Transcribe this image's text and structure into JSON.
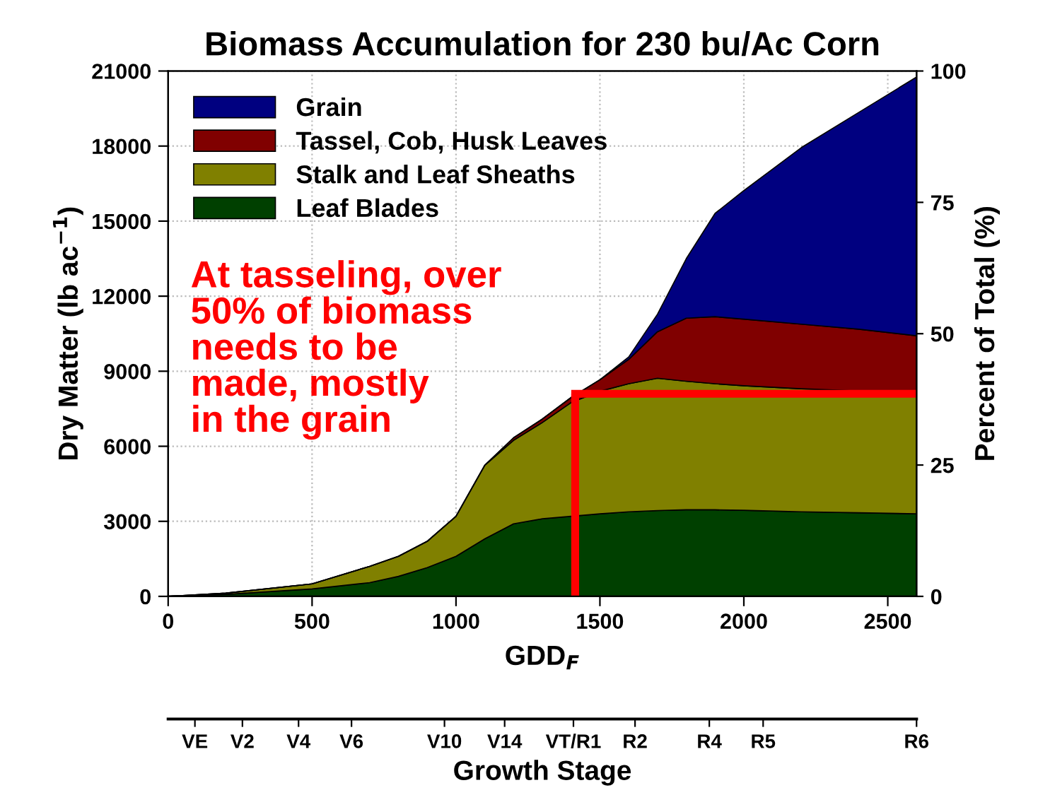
{
  "chart_data": {
    "type": "area",
    "title": "Biomass Accumulation for 230 bu/Ac Corn",
    "xlabel": "GDD$_{F}$",
    "ylabel": "Dry Matter (lb ac$^{−1}$)",
    "y2label": "Percent of Total (%)",
    "stacked": true,
    "grid": true,
    "legend": "top left",
    "x": [
      0,
      200,
      500,
      700,
      800,
      900,
      1000,
      1100,
      1200,
      1300,
      1400,
      1500,
      1600,
      1700,
      1800,
      1900,
      2000,
      2200,
      2400,
      2600
    ],
    "series": [
      {
        "name": "Leaf Blades",
        "color": "#004000",
        "values": [
          0,
          80,
          300,
          550,
          800,
          1150,
          1600,
          2300,
          2900,
          3100,
          3200,
          3300,
          3380,
          3430,
          3460,
          3460,
          3440,
          3380,
          3340,
          3300
        ]
      },
      {
        "name": "Stalk and Leaf Sheaths",
        "color": "#808000",
        "values": [
          0,
          50,
          200,
          650,
          800,
          1050,
          1600,
          2940,
          3340,
          3850,
          4550,
          4900,
          5120,
          5290,
          5140,
          5040,
          4980,
          4920,
          4870,
          4850
        ]
      },
      {
        "name": "Tassel, Cob, Husk Leaves",
        "color": "#800000",
        "values": [
          0,
          0,
          0,
          0,
          0,
          0,
          0,
          0,
          100,
          140,
          200,
          460,
          970,
          1860,
          2520,
          2680,
          2660,
          2580,
          2470,
          2270
        ]
      },
      {
        "name": "Grain",
        "color": "#000080",
        "values": [
          0,
          0,
          0,
          0,
          0,
          0,
          0,
          0,
          0,
          0,
          0,
          0,
          100,
          700,
          2380,
          4130,
          5140,
          7060,
          8670,
          10340
        ]
      }
    ],
    "ref_lines": [
      {
        "axis": "x",
        "value": 1414,
        "color": "#ff0000"
      },
      {
        "axis": "y",
        "value": 8100,
        "color": "#ff0000"
      },
      {
        "axis": "x",
        "value": 93,
        "label": "VE"
      },
      {
        "axis": "x",
        "value": 258,
        "label": "V2"
      },
      {
        "axis": "x",
        "value": 453,
        "label": "V4"
      },
      {
        "axis": "x",
        "value": 637,
        "label": "V6"
      },
      {
        "axis": "x",
        "value": 960,
        "label": "V10"
      },
      {
        "axis": "x",
        "value": 1169,
        "label": "V14"
      },
      {
        "axis": "x",
        "value": 1408,
        "label": "VT/R1"
      },
      {
        "axis": "x",
        "value": 1622,
        "label": "R2"
      },
      {
        "axis": "x",
        "value": 1880,
        "label": "R4"
      },
      {
        "axis": "x",
        "value": 2067,
        "label": "R5"
      },
      {
        "axis": "x",
        "value": 2600,
        "label": "R6"
      }
    ],
    "xlim": [
      0,
      2600
    ],
    "xticks": [
      0,
      500,
      1000,
      1500,
      2000,
      2500
    ],
    "ylim": [
      0,
      21000
    ],
    "yticks": [
      0,
      3000,
      6000,
      9000,
      12000,
      15000,
      18000,
      21000
    ],
    "y2lim": [
      0,
      100
    ],
    "y2ticks": [
      0,
      25,
      50,
      75,
      100
    ],
    "annotations": [
      "At tasseling, over\n50% of biomass\nneeds to be\nmade, mostly\nin the grain",
      "Growth Stage"
    ]
  }
}
